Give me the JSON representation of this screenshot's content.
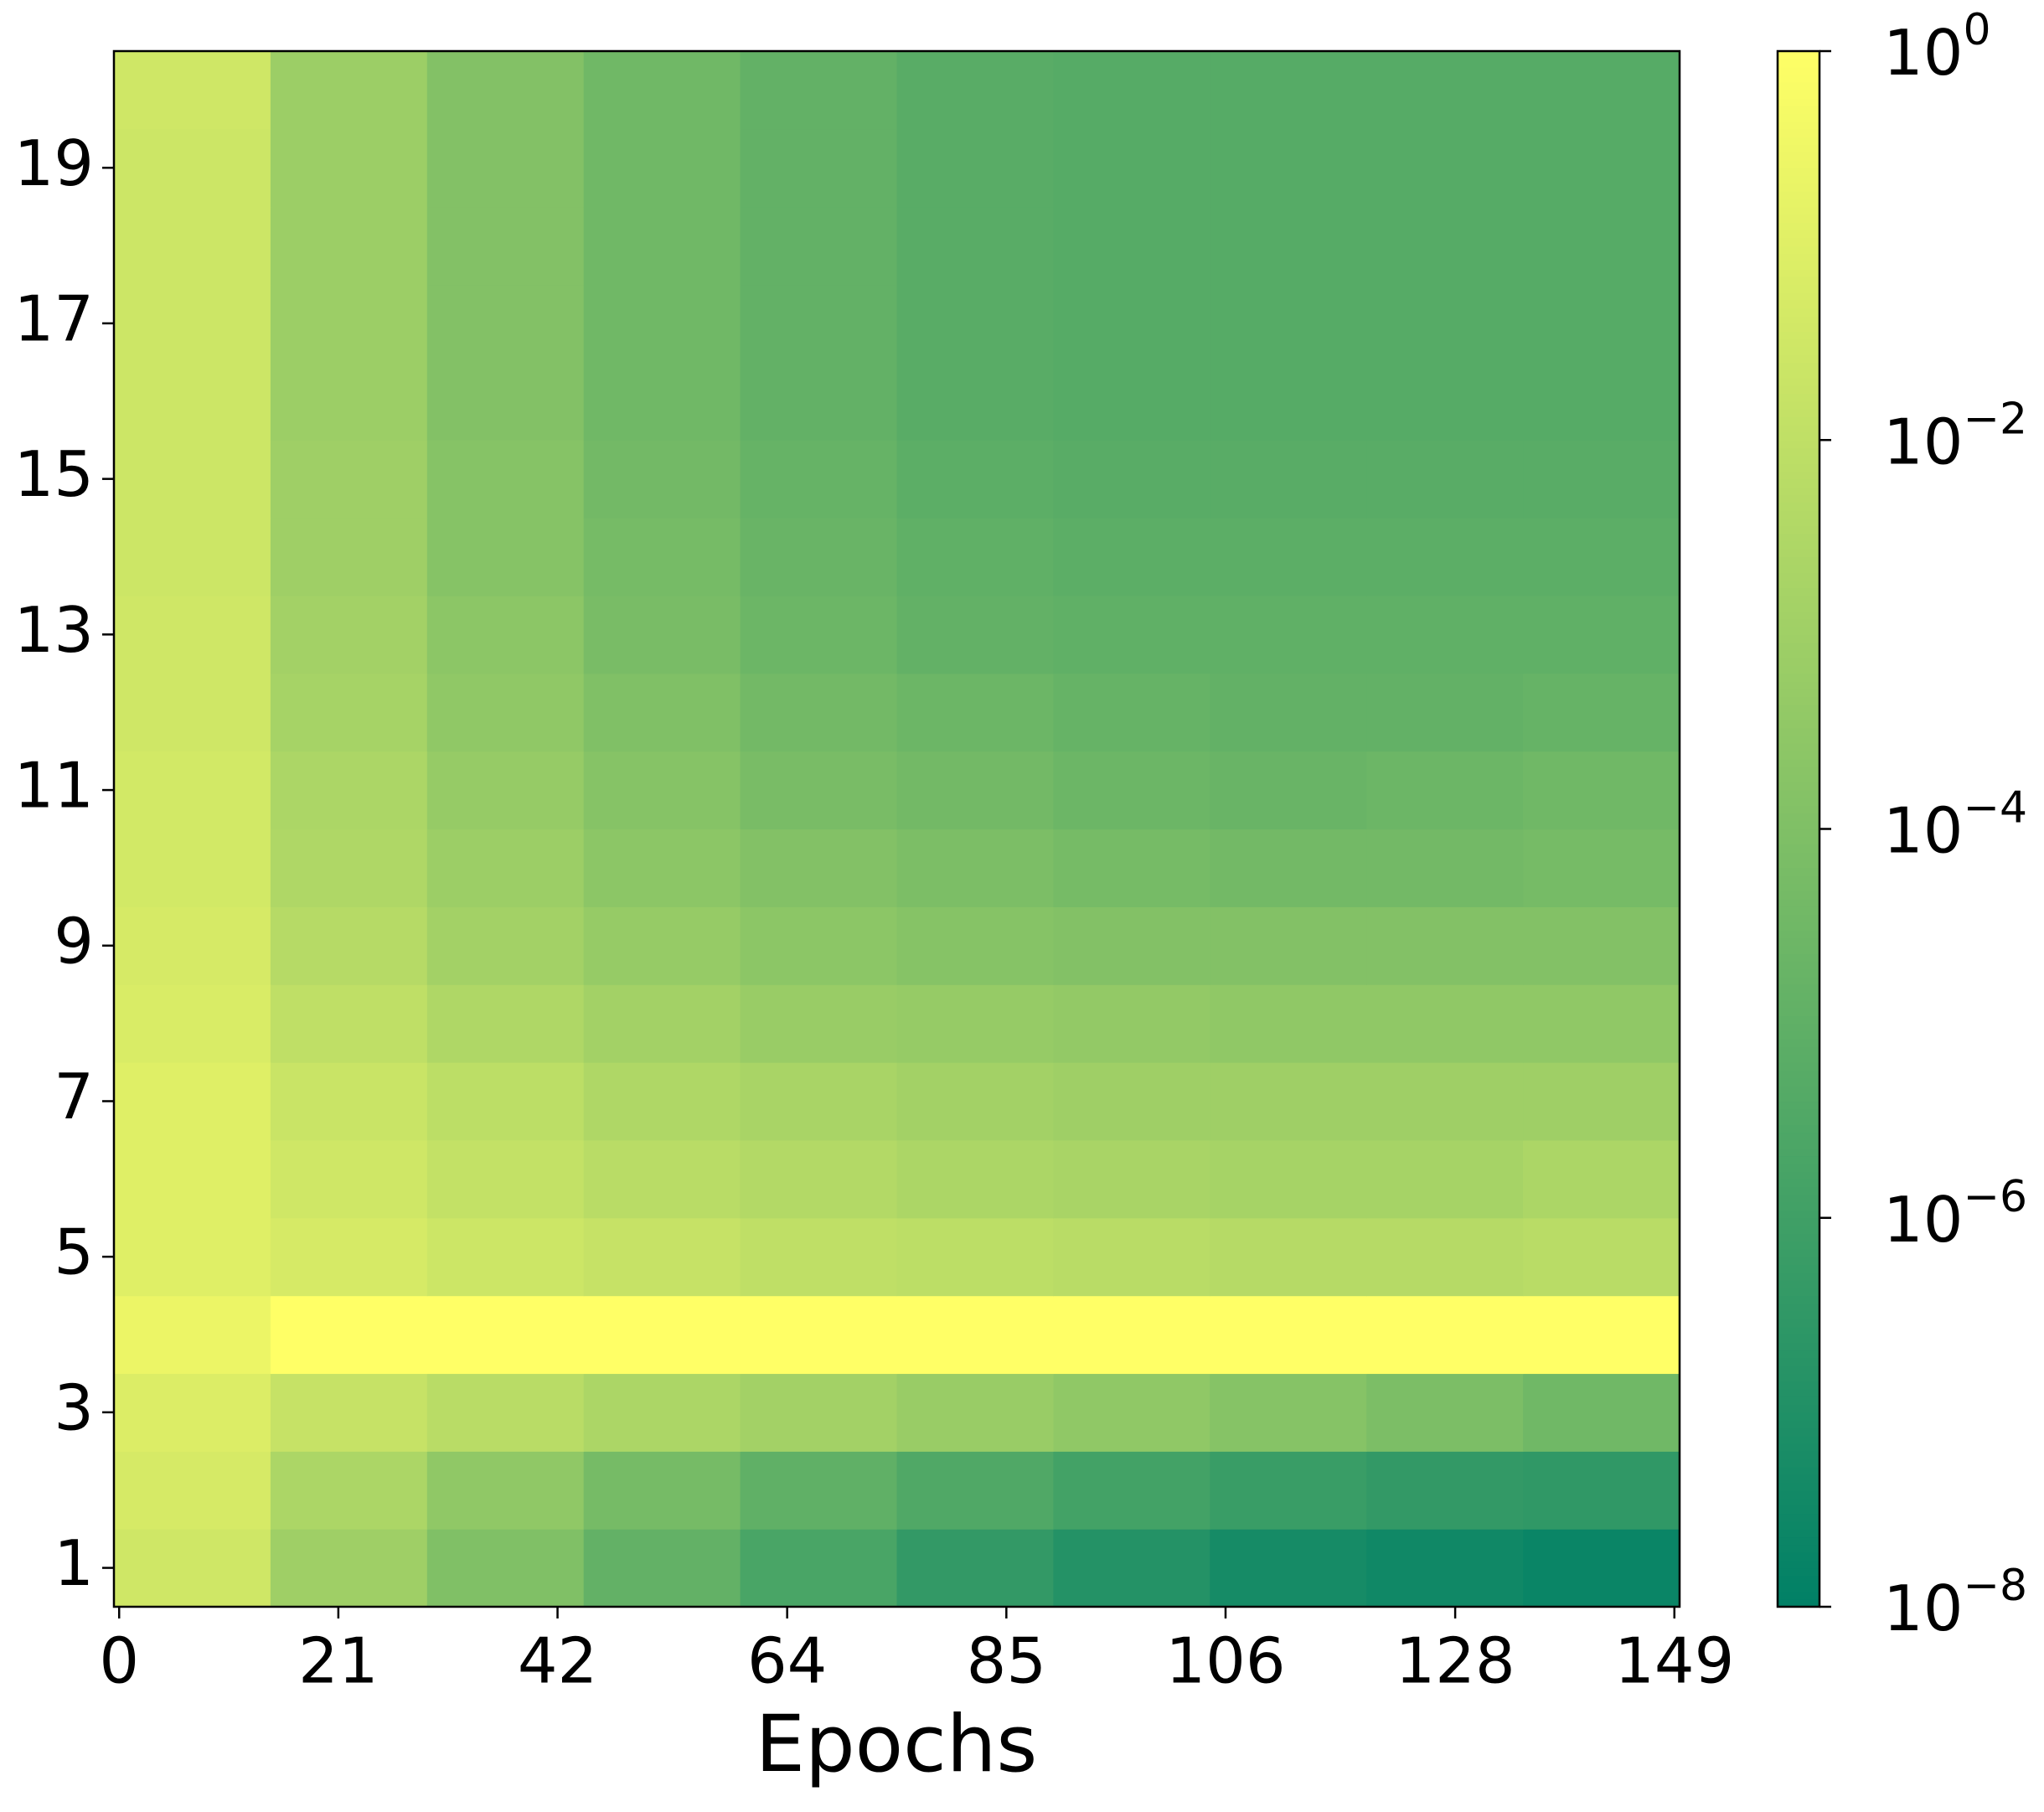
{
  "chart_data": {
    "type": "heatmap",
    "xlabel": "Epochs",
    "x_bins": [
      -0.5,
      14.5,
      29.5,
      44.5,
      59.5,
      74.5,
      89.5,
      104.5,
      119.5,
      134.5,
      149.5
    ],
    "y": [
      1,
      2,
      3,
      4,
      5,
      6,
      7,
      8,
      9,
      10,
      11,
      12,
      13,
      14,
      15,
      16,
      17,
      18,
      19,
      20
    ],
    "values": [
      [
        0.032,
        0.001,
        0.0001,
        1.3e-05,
        2e-06,
        4e-07,
        1.3e-07,
        5e-08,
        3.2e-08,
        2e-08
      ],
      [
        0.05,
        0.0025,
        0.00032,
        5e-05,
        1e-05,
        3.2e-06,
        1.3e-06,
        6.3e-07,
        4e-07,
        3.2e-07
      ],
      [
        0.079,
        0.016,
        0.0063,
        0.0025,
        0.0013,
        0.00063,
        0.00032,
        0.00016,
        7.9e-05,
        3.2e-05
      ],
      [
        0.25,
        1,
        1,
        1,
        1,
        1,
        1,
        1,
        1,
        1
      ],
      [
        0.1,
        0.05,
        0.025,
        0.016,
        0.01,
        0.0079,
        0.0063,
        0.005,
        0.005,
        0.0063
      ],
      [
        0.1,
        0.032,
        0.013,
        0.0063,
        0.004,
        0.0025,
        0.002,
        0.0016,
        0.0016,
        0.0025
      ],
      [
        0.1,
        0.02,
        0.0079,
        0.0032,
        0.002,
        0.0013,
        0.001,
        0.001,
        0.001,
        0.001
      ],
      [
        0.063,
        0.01,
        0.0032,
        0.0013,
        0.00063,
        0.0005,
        0.0004,
        0.00032,
        0.00032,
        0.00032
      ],
      [
        0.05,
        0.005,
        0.0013,
        0.0005,
        0.00025,
        0.00016,
        0.00013,
        0.00013,
        0.00013,
        0.00013
      ],
      [
        0.04,
        0.0032,
        0.00079,
        0.00025,
        0.00013,
        7.9e-05,
        5e-05,
        4e-05,
        4e-05,
        5e-05
      ],
      [
        0.04,
        0.0025,
        0.0005,
        0.00016,
        6.3e-05,
        4e-05,
        2.5e-05,
        2e-05,
        2.5e-05,
        3.2e-05
      ],
      [
        0.032,
        0.0016,
        0.00032,
        0.0001,
        4e-05,
        2.5e-05,
        1.6e-05,
        1.3e-05,
        1.3e-05,
        1.6e-05
      ],
      [
        0.032,
        0.0013,
        0.00025,
        6.3e-05,
        2.5e-05,
        1.3e-05,
        1e-05,
        1e-05,
        1e-05,
        1e-05
      ],
      [
        0.025,
        0.001,
        0.00016,
        5e-05,
        2e-05,
        1e-05,
        7.9e-06,
        7.9e-06,
        7.9e-06,
        7.9e-06
      ],
      [
        0.025,
        0.001,
        0.00016,
        4e-05,
        1.6e-05,
        7.9e-06,
        6.3e-06,
        6.3e-06,
        6.3e-06,
        6.3e-06
      ],
      [
        0.025,
        0.00079,
        0.00013,
        3.2e-05,
        1.3e-05,
        6.3e-06,
        5e-06,
        5e-06,
        5e-06,
        5e-06
      ],
      [
        0.025,
        0.00079,
        0.00013,
        3.2e-05,
        1.3e-05,
        6.3e-06,
        5e-06,
        5e-06,
        5e-06,
        5e-06
      ],
      [
        0.025,
        0.00079,
        0.00013,
        3.2e-05,
        1.3e-05,
        6.3e-06,
        5e-06,
        5e-06,
        5e-06,
        5e-06
      ],
      [
        0.025,
        0.00079,
        0.00013,
        3.2e-05,
        1.3e-05,
        6.3e-06,
        5e-06,
        5e-06,
        5e-06,
        5e-06
      ],
      [
        0.032,
        0.00079,
        0.00013,
        3.2e-05,
        1.3e-05,
        6.3e-06,
        5e-06,
        5e-06,
        5e-06,
        5e-06
      ]
    ],
    "xlim": [
      -0.5,
      149.5
    ],
    "xticks": [
      0,
      21,
      42,
      64,
      85,
      106,
      128,
      149
    ],
    "ylim": [
      0.5,
      20.5
    ],
    "yticks": [
      1,
      3,
      5,
      7,
      9,
      11,
      13,
      15,
      17,
      19
    ],
    "colormap": [
      "#008066",
      "#ffff66"
    ],
    "color_log": true,
    "clim": [
      1e-08,
      1
    ],
    "cticks": [
      {
        "value": 1e-08,
        "base": "10",
        "exponent": "−8"
      },
      {
        "value": 1e-06,
        "base": "10",
        "exponent": "−6"
      },
      {
        "value": 0.0001,
        "base": "10",
        "exponent": "−4"
      },
      {
        "value": 0.01,
        "base": "10",
        "exponent": "−2"
      },
      {
        "value": 1,
        "base": "10",
        "exponent": "0"
      }
    ]
  }
}
